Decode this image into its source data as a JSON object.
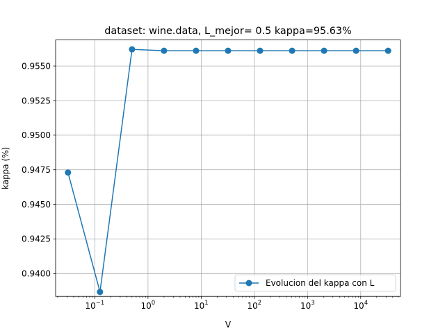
{
  "chart_data": {
    "type": "line",
    "title": "dataset: wine.data, L_mejor= 0.5 kappa=95.63%",
    "xlabel": "V",
    "ylabel": "kappa (%)",
    "xscale": "log",
    "xlim": [
      0.0183,
      56000
    ],
    "ylim": [
      0.93835,
      0.95688
    ],
    "grid": true,
    "legend_position": "lower-right",
    "x_ticks": [
      {
        "value": 0.1,
        "base": "10",
        "exp": "−1"
      },
      {
        "value": 1,
        "base": "10",
        "exp": "0"
      },
      {
        "value": 10,
        "base": "10",
        "exp": "1"
      },
      {
        "value": 100,
        "base": "10",
        "exp": "2"
      },
      {
        "value": 1000,
        "base": "10",
        "exp": "3"
      },
      {
        "value": 10000,
        "base": "10",
        "exp": "4"
      }
    ],
    "y_ticks": [
      {
        "value": 0.94,
        "label": "0.9400"
      },
      {
        "value": 0.9425,
        "label": "0.9425"
      },
      {
        "value": 0.945,
        "label": "0.9450"
      },
      {
        "value": 0.9475,
        "label": "0.9475"
      },
      {
        "value": 0.95,
        "label": "0.9500"
      },
      {
        "value": 0.9525,
        "label": "0.9525"
      },
      {
        "value": 0.955,
        "label": "0.9550"
      }
    ],
    "series": [
      {
        "name": "Evolucion del kappa con L",
        "color": "#1f77b4",
        "x": [
          0.03125,
          0.125,
          0.5,
          2,
          8,
          32,
          128,
          512,
          2048,
          8192,
          32768
        ],
        "y": [
          0.9473,
          0.93867,
          0.9562,
          0.9561,
          0.9561,
          0.9561,
          0.9561,
          0.9561,
          0.9561,
          0.9561,
          0.9561
        ]
      }
    ]
  }
}
